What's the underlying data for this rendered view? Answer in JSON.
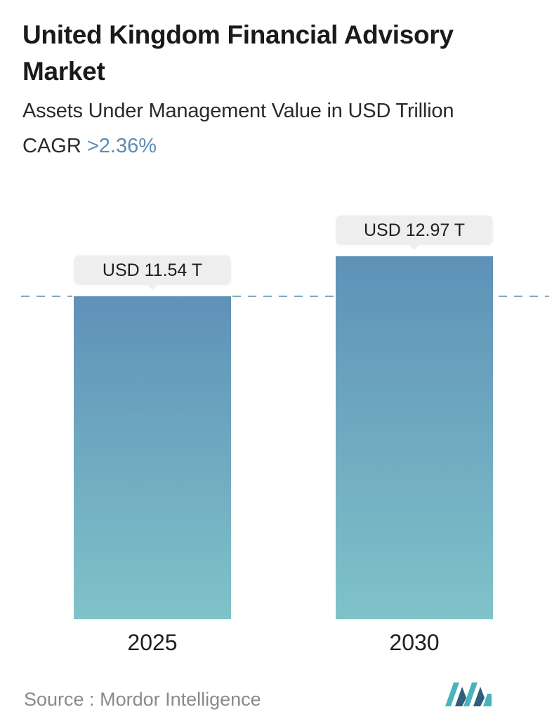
{
  "title": "United Kingdom Financial Advisory Market",
  "subtitle": "Assets Under Management Value in USD Trillion",
  "cagr": {
    "label": "CAGR",
    "value": ">2.36%"
  },
  "source": {
    "label": "Source :",
    "name": "Mordor Intelligence"
  },
  "colors": {
    "bar_top": "#5f91b8",
    "bar_bottom": "#7fc3c9",
    "label_bg": "#eeeeee",
    "dashed_line": "#5a8aa8",
    "cagr_accent": "#5b8db8",
    "logo_dark": "#2f5d7c",
    "logo_light": "#4bb3bd"
  },
  "chart_data": {
    "type": "bar",
    "categories": [
      "2025",
      "2030"
    ],
    "values": [
      11.54,
      12.97
    ],
    "value_labels": [
      "USD 11.54 T",
      "USD 12.97 T"
    ],
    "reference_line": 11.54,
    "grid": false,
    "legend": "none"
  }
}
